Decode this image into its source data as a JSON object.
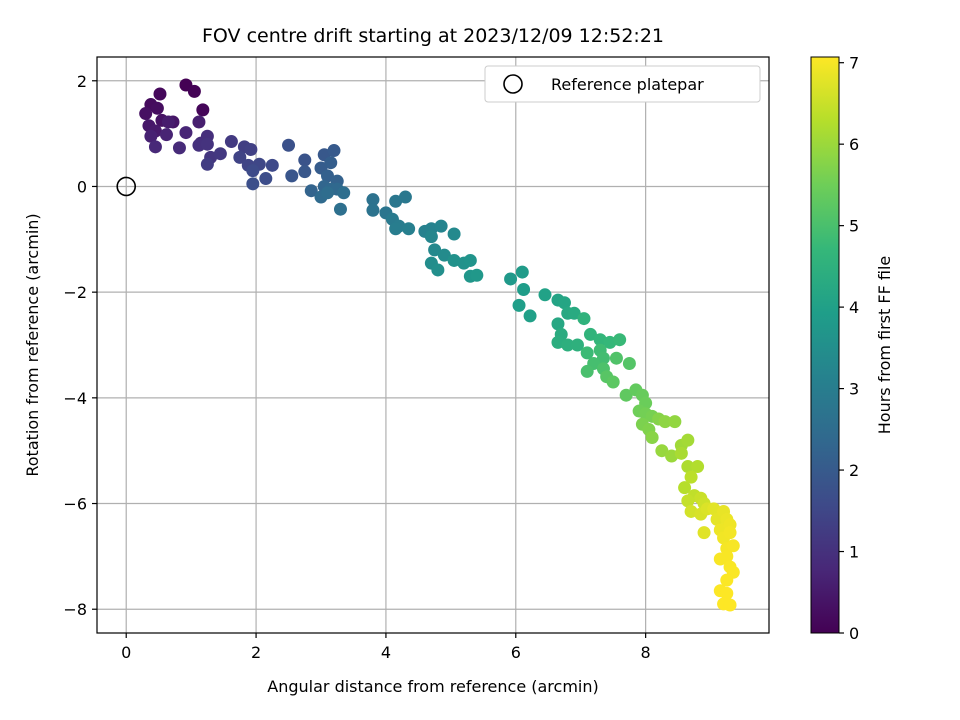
{
  "chart_data": {
    "type": "scatter",
    "title": "FOV centre drift starting at 2023/12/09 12:52:21",
    "xlabel": "Angular distance from reference (arcmin)",
    "ylabel": "Rotation from reference (arcmin)",
    "xlim": [
      -0.45,
      9.9
    ],
    "ylim": [
      -8.45,
      2.45
    ],
    "xticks": [
      0,
      2,
      4,
      6,
      8
    ],
    "yticks": [
      2,
      0,
      -2,
      -4,
      -6,
      -8
    ],
    "xtick_labels": [
      "0",
      "2",
      "4",
      "6",
      "8"
    ],
    "ytick_labels": [
      "2",
      "0",
      "−2",
      "−4",
      "−6",
      "−8"
    ],
    "grid": true,
    "legend": {
      "position": "top-right",
      "label": "Reference platepar"
    },
    "reference_point": {
      "x": 0,
      "y": 0
    },
    "colorbar": {
      "label": "Hours from first FF file",
      "min": 0,
      "max": 7.07,
      "ticks": [
        0,
        1,
        2,
        3,
        4,
        5,
        6,
        7
      ],
      "tick_labels": [
        "0",
        "1",
        "2",
        "3",
        "4",
        "5",
        "6",
        "7"
      ],
      "colormap": "viridis"
    },
    "colormap_stops": [
      "#440154",
      "#482878",
      "#3e4a89",
      "#31688e",
      "#26828e",
      "#1f9e89",
      "#35b779",
      "#6ece58",
      "#b5de2b",
      "#fde725"
    ],
    "series": [
      {
        "columns": [
          "x",
          "y",
          "hours"
        ],
        "points": [
          [
            0.92,
            1.92,
            0.0
          ],
          [
            1.05,
            1.8,
            0.05
          ],
          [
            1.18,
            1.45,
            0.1
          ],
          [
            0.52,
            1.75,
            0.15
          ],
          [
            0.38,
            1.55,
            0.2
          ],
          [
            0.48,
            1.48,
            0.25
          ],
          [
            0.3,
            1.38,
            0.3
          ],
          [
            0.55,
            1.25,
            0.35
          ],
          [
            0.72,
            1.22,
            0.4
          ],
          [
            0.35,
            1.15,
            0.45
          ],
          [
            0.45,
            1.05,
            0.5
          ],
          [
            0.65,
            1.22,
            0.55
          ],
          [
            1.12,
            1.22,
            0.6
          ],
          [
            0.38,
            0.95,
            0.65
          ],
          [
            0.62,
            0.98,
            0.7
          ],
          [
            0.92,
            1.02,
            0.75
          ],
          [
            0.45,
            0.75,
            0.8
          ],
          [
            0.82,
            0.73,
            0.85
          ],
          [
            1.15,
            0.82,
            0.9
          ],
          [
            1.25,
            0.95,
            0.95
          ],
          [
            1.12,
            0.78,
            1.0
          ],
          [
            1.25,
            0.8,
            1.05
          ],
          [
            1.3,
            0.55,
            1.1
          ],
          [
            1.45,
            0.62,
            1.15
          ],
          [
            1.62,
            0.85,
            1.2
          ],
          [
            1.25,
            0.42,
            1.25
          ],
          [
            1.82,
            0.75,
            1.3
          ],
          [
            1.92,
            0.7,
            1.35
          ],
          [
            1.75,
            0.55,
            1.4
          ],
          [
            1.88,
            0.4,
            1.45
          ],
          [
            2.05,
            0.42,
            1.5
          ],
          [
            2.25,
            0.4,
            1.55
          ],
          [
            1.95,
            0.3,
            1.6
          ],
          [
            2.15,
            0.15,
            1.65
          ],
          [
            1.95,
            0.05,
            1.7
          ],
          [
            2.5,
            0.78,
            1.75
          ],
          [
            2.75,
            0.5,
            1.8
          ],
          [
            2.55,
            0.2,
            1.85
          ],
          [
            2.75,
            0.28,
            1.9
          ],
          [
            3.05,
            0.6,
            1.95
          ],
          [
            3.2,
            0.68,
            2.0
          ],
          [
            3.0,
            0.35,
            2.05
          ],
          [
            3.15,
            0.45,
            2.1
          ],
          [
            3.1,
            0.2,
            2.15
          ],
          [
            3.25,
            0.1,
            2.2
          ],
          [
            2.85,
            -0.08,
            2.25
          ],
          [
            3.05,
            0.0,
            2.3
          ],
          [
            3.15,
            -0.05,
            2.35
          ],
          [
            3.25,
            -0.05,
            2.4
          ],
          [
            3.0,
            -0.2,
            2.45
          ],
          [
            3.1,
            -0.12,
            2.5
          ],
          [
            3.35,
            -0.12,
            2.55
          ],
          [
            3.3,
            -0.43,
            2.6
          ],
          [
            3.8,
            -0.25,
            2.65
          ],
          [
            3.8,
            -0.45,
            2.7
          ],
          [
            4.0,
            -0.5,
            2.75
          ],
          [
            4.15,
            -0.28,
            2.8
          ],
          [
            4.3,
            -0.2,
            2.85
          ],
          [
            4.1,
            -0.62,
            2.9
          ],
          [
            4.2,
            -0.75,
            2.95
          ],
          [
            4.15,
            -0.8,
            3.0
          ],
          [
            4.35,
            -0.8,
            3.05
          ],
          [
            4.6,
            -0.85,
            3.1
          ],
          [
            4.7,
            -0.8,
            3.15
          ],
          [
            4.85,
            -0.75,
            3.2
          ],
          [
            4.7,
            -0.95,
            3.25
          ],
          [
            4.75,
            -1.2,
            3.3
          ],
          [
            5.05,
            -0.9,
            3.35
          ],
          [
            4.9,
            -1.3,
            3.4
          ],
          [
            4.7,
            -1.45,
            3.45
          ],
          [
            4.8,
            -1.58,
            3.5
          ],
          [
            5.05,
            -1.4,
            3.55
          ],
          [
            5.2,
            -1.45,
            3.6
          ],
          [
            5.3,
            -1.4,
            3.65
          ],
          [
            5.3,
            -1.7,
            3.7
          ],
          [
            5.4,
            -1.68,
            3.75
          ],
          [
            5.92,
            -1.75,
            3.8
          ],
          [
            6.1,
            -1.62,
            3.85
          ],
          [
            6.12,
            -1.95,
            3.9
          ],
          [
            6.05,
            -2.25,
            3.95
          ],
          [
            6.22,
            -2.45,
            4.0
          ],
          [
            6.45,
            -2.05,
            4.05
          ],
          [
            6.65,
            -2.15,
            4.1
          ],
          [
            6.75,
            -2.2,
            4.15
          ],
          [
            6.65,
            -2.6,
            4.2
          ],
          [
            6.8,
            -2.4,
            4.25
          ],
          [
            6.9,
            -2.4,
            4.3
          ],
          [
            6.7,
            -2.8,
            4.35
          ],
          [
            6.65,
            -2.95,
            4.4
          ],
          [
            6.8,
            -3.0,
            4.45
          ],
          [
            6.95,
            -3.0,
            4.5
          ],
          [
            7.05,
            -2.5,
            4.55
          ],
          [
            7.15,
            -2.8,
            4.6
          ],
          [
            7.3,
            -2.9,
            4.65
          ],
          [
            7.45,
            -2.95,
            4.7
          ],
          [
            7.6,
            -2.9,
            4.75
          ],
          [
            7.1,
            -3.15,
            4.8
          ],
          [
            7.3,
            -3.1,
            4.85
          ],
          [
            7.35,
            -3.25,
            4.9
          ],
          [
            7.2,
            -3.35,
            4.95
          ],
          [
            7.1,
            -3.5,
            5.0
          ],
          [
            7.35,
            -3.45,
            5.05
          ],
          [
            7.55,
            -3.25,
            5.1
          ],
          [
            7.75,
            -3.35,
            5.15
          ],
          [
            7.4,
            -3.6,
            5.2
          ],
          [
            7.5,
            -3.7,
            5.25
          ],
          [
            7.7,
            -3.95,
            5.3
          ],
          [
            7.85,
            -3.85,
            5.35
          ],
          [
            7.95,
            -3.95,
            5.4
          ],
          [
            8.0,
            -4.1,
            5.45
          ],
          [
            7.9,
            -4.25,
            5.5
          ],
          [
            8.0,
            -4.3,
            5.55
          ],
          [
            8.1,
            -4.35,
            5.6
          ],
          [
            7.95,
            -4.5,
            5.65
          ],
          [
            8.05,
            -4.6,
            5.7
          ],
          [
            8.2,
            -4.4,
            5.75
          ],
          [
            8.1,
            -4.75,
            5.8
          ],
          [
            8.3,
            -4.45,
            5.85
          ],
          [
            8.45,
            -4.45,
            5.9
          ],
          [
            8.25,
            -5.0,
            5.95
          ],
          [
            8.4,
            -5.1,
            6.0
          ],
          [
            8.55,
            -4.9,
            6.05
          ],
          [
            8.65,
            -4.8,
            6.1
          ],
          [
            8.55,
            -5.05,
            6.15
          ],
          [
            8.65,
            -5.3,
            6.2
          ],
          [
            8.8,
            -5.3,
            6.25
          ],
          [
            8.6,
            -5.7,
            6.3
          ],
          [
            8.7,
            -5.5,
            6.35
          ],
          [
            8.75,
            -5.85,
            6.4
          ],
          [
            8.65,
            -5.95,
            6.45
          ],
          [
            8.85,
            -5.9,
            6.5
          ],
          [
            8.9,
            -6.0,
            6.55
          ],
          [
            8.7,
            -6.15,
            6.6
          ],
          [
            8.85,
            -6.2,
            6.65
          ],
          [
            8.95,
            -6.1,
            6.7
          ],
          [
            8.9,
            -6.55,
            6.75
          ],
          [
            9.05,
            -6.1,
            6.78
          ],
          [
            9.1,
            -6.3,
            6.81
          ],
          [
            9.2,
            -6.15,
            6.84
          ],
          [
            9.25,
            -6.3,
            6.87
          ],
          [
            9.15,
            -6.5,
            6.9
          ],
          [
            9.3,
            -6.4,
            6.92
          ],
          [
            9.2,
            -6.65,
            6.94
          ],
          [
            9.3,
            -6.55,
            6.96
          ],
          [
            9.25,
            -6.85,
            6.98
          ],
          [
            9.35,
            -6.8,
            7.0
          ],
          [
            9.15,
            -7.05,
            7.01
          ],
          [
            9.25,
            -7.0,
            7.02
          ],
          [
            9.3,
            -7.2,
            7.03
          ],
          [
            9.35,
            -7.3,
            7.04
          ],
          [
            9.25,
            -7.45,
            7.05
          ],
          [
            9.15,
            -7.65,
            7.06
          ],
          [
            9.25,
            -7.7,
            7.065
          ],
          [
            9.2,
            -7.9,
            7.07
          ],
          [
            9.3,
            -7.92,
            7.07
          ]
        ]
      }
    ]
  }
}
